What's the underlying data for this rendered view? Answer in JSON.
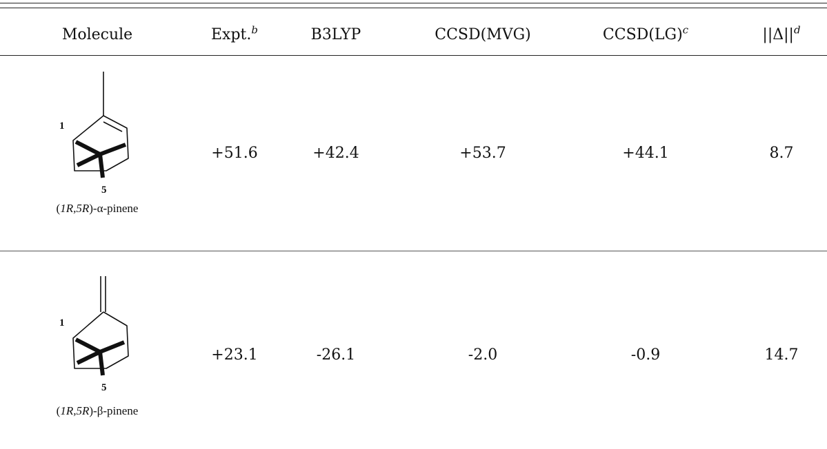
{
  "table": {
    "headers": {
      "molecule": "Molecule",
      "expt": "Expt.",
      "expt_sup": "b",
      "b3lyp": "B3LYP",
      "ccsd_mvg": "CCSD(MVG)",
      "ccsd_lg": "CCSD(LG)",
      "ccsd_lg_sup": "c",
      "delta": "||Δ||",
      "delta_sup": "d"
    },
    "rows": [
      {
        "molecule_prefix": "(",
        "config": "1R,5R",
        "molecule_suffix": ")-α-pinene",
        "atom_label_1": "1",
        "atom_label_5": "5",
        "expt": "+51.6",
        "b3lyp": "+42.4",
        "ccsd_mvg": "+53.7",
        "ccsd_lg": "+44.1",
        "delta": "8.7"
      },
      {
        "molecule_prefix": "(",
        "config": "1R,5R",
        "molecule_suffix": ")-β-pinene",
        "atom_label_1": "1",
        "atom_label_5": "5",
        "expt": "+23.1",
        "b3lyp": "-26.1",
        "ccsd_mvg": "-2.0",
        "ccsd_lg": "-0.9",
        "delta": "14.7"
      }
    ]
  }
}
